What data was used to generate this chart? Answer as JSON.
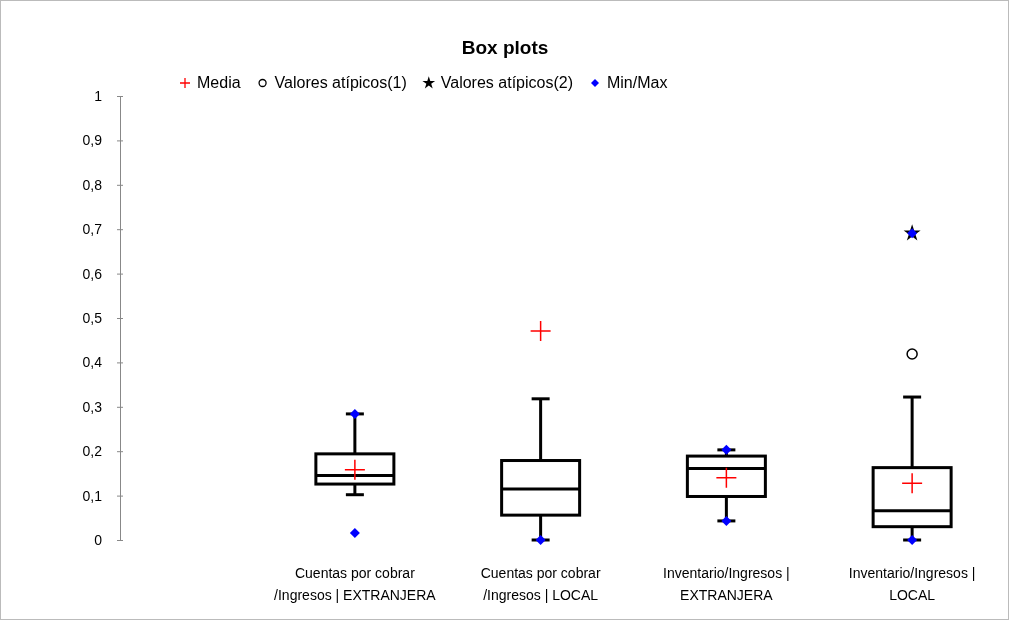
{
  "chart_data": {
    "type": "box",
    "title": "Box plots",
    "categories": [
      "Cuentas por cobrar /Ingresos | EXTRANJERA",
      "Cuentas por cobrar /Ingresos | LOCAL",
      "Inventario/Ingresos | EXTRANJERA",
      "Inventario/Ingresos | LOCAL"
    ],
    "boxes": [
      {
        "low": 0.102,
        "q1": 0.126,
        "median": 0.145,
        "q3": 0.194,
        "high": 0.284
      },
      {
        "low": 0,
        "q1": 0.056,
        "median": 0.115,
        "q3": 0.179,
        "high": 0.318
      },
      {
        "low": 0.043,
        "q1": 0.098,
        "median": 0.161,
        "q3": 0.189,
        "high": 0.203
      },
      {
        "low": 0,
        "q1": 0.03,
        "median": 0.066,
        "q3": 0.163,
        "high": 0.322
      }
    ],
    "series": [
      {
        "name": "Media",
        "type": "scatter",
        "marker": "cross",
        "color": "#ff0000",
        "x": [
          "Cuentas por cobrar /Ingresos | EXTRANJERA",
          "Cuentas por cobrar /Ingresos | LOCAL",
          "Inventario/Ingresos | EXTRANJERA",
          "Inventario/Ingresos | LOCAL"
        ],
        "values": [
          0.158,
          0.471,
          0.14,
          0.128
        ]
      },
      {
        "name": "Valores atípicos(1)",
        "type": "scatter",
        "marker": "circle",
        "color": "#000000",
        "x": [
          "Inventario/Ingresos | LOCAL"
        ],
        "values": [
          0.419
        ]
      },
      {
        "name": "Valores atípicos(2)",
        "type": "scatter",
        "marker": "star",
        "color": "#000000",
        "x": [
          "Inventario/Ingresos | LOCAL"
        ],
        "values": [
          0.691
        ]
      },
      {
        "name": "Min/Max",
        "type": "scatter",
        "marker": "diamond",
        "color": "#0000ff",
        "x": [
          "Cuentas por cobrar /Ingresos | EXTRANJERA",
          "Cuentas por cobrar /Ingresos | EXTRANJERA",
          "Cuentas por cobrar /Ingresos | LOCAL",
          "Inventario/Ingresos | EXTRANJERA",
          "Inventario/Ingresos | EXTRANJERA",
          "Inventario/Ingresos | LOCAL",
          "Inventario/Ingresos | LOCAL"
        ],
        "values": [
          0.016,
          0.284,
          0,
          0.043,
          0.203,
          0,
          0.691
        ]
      }
    ],
    "ylim": [
      0,
      1
    ],
    "yticks": [
      0,
      {
        "value": 0.1,
        "label": "0,1"
      },
      {
        "value": 0.2,
        "label": "0,2"
      },
      {
        "value": 0.3,
        "label": "0,3"
      },
      {
        "value": 0.4,
        "label": "0,4"
      },
      {
        "value": 0.5,
        "label": "0,5"
      },
      {
        "value": 0.6,
        "label": "0,6"
      },
      {
        "value": 0.7,
        "label": "0,7"
      },
      {
        "value": 0.8,
        "label": "0,8"
      },
      {
        "value": 0.9,
        "label": "0,9"
      },
      1
    ],
    "legend": "top"
  }
}
